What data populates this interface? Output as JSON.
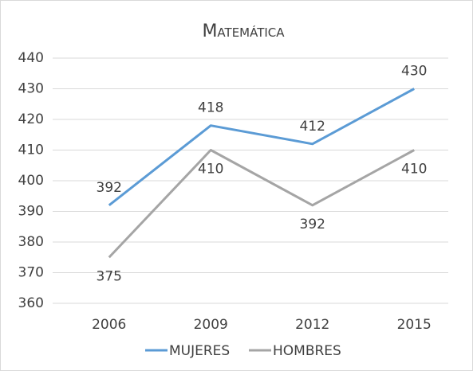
{
  "chart_data": {
    "type": "line",
    "title": "Matemática",
    "categories": [
      "2006",
      "2009",
      "2012",
      "2015"
    ],
    "series": [
      {
        "name": "MUJERES",
        "color": "#5b9bd5",
        "values": [
          392,
          418,
          412,
          430
        ]
      },
      {
        "name": "HOMBRES",
        "color": "#a5a5a5",
        "values": [
          375,
          410,
          392,
          410
        ]
      }
    ],
    "ylim": [
      360,
      440
    ],
    "yticks": [
      360,
      370,
      380,
      390,
      400,
      410,
      420,
      430,
      440
    ],
    "grid": true,
    "legend": "bottom"
  }
}
